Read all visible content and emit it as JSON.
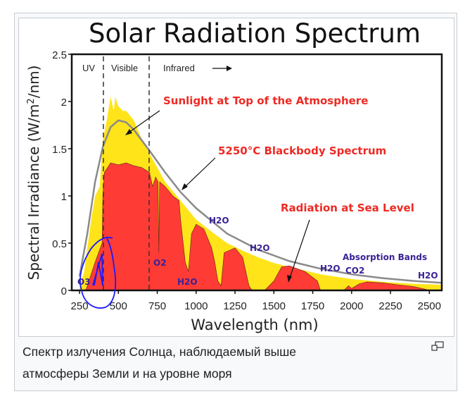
{
  "caption": {
    "line1": "Спектр излучения Солнца, наблюдаемый выше",
    "line2": "атмосферы Земли и на уровне моря"
  },
  "enlarge_icon": "magnify-clip-icon",
  "chart_data": {
    "type": "area",
    "title": "Solar Radiation Spectrum",
    "xlabel": "Wavelength (nm)",
    "ylabel": "Spectral Irradiance (W/m²/nm)",
    "ylabel_parts": {
      "main": "Spectral Irradiance (W/m",
      "sup": "2",
      "end": "/nm)"
    },
    "xlim": [
      200,
      2580
    ],
    "ylim": [
      0,
      2.5
    ],
    "xticks": [
      "250",
      "500",
      "750",
      "1000",
      "1250",
      "1500",
      "1750",
      "2000",
      "2250",
      "2500"
    ],
    "xtick_values": [
      250,
      500,
      750,
      1000,
      1250,
      1500,
      1750,
      2000,
      2250,
      2500
    ],
    "yticks": [
      "0",
      "0.5",
      "1",
      "1.5",
      "2",
      "2.5"
    ],
    "ytick_values": [
      0,
      0.5,
      1,
      1.5,
      2,
      2.5
    ],
    "regions": {
      "uv": "UV",
      "visible": "Visible",
      "infrared": "Infrared",
      "boundaries": [
        400,
        700
      ]
    },
    "series": [
      {
        "name": "Sunlight at Top of the Atmosphere",
        "color": "#ffe41a",
        "x": [
          250,
          280,
          300,
          330,
          350,
          380,
          400,
          420,
          440,
          450,
          470,
          480,
          500,
          530,
          550,
          600,
          650,
          700,
          750,
          800,
          900,
          1000,
          1100,
          1200,
          1300,
          1400,
          1500,
          1600,
          1700,
          1800,
          2000,
          2200,
          2400,
          2580
        ],
        "y": [
          0.05,
          0.2,
          0.45,
          0.8,
          1.0,
          1.1,
          1.6,
          1.75,
          1.95,
          2.05,
          1.9,
          2.05,
          1.95,
          1.9,
          1.9,
          1.8,
          1.6,
          1.45,
          1.3,
          1.15,
          0.95,
          0.75,
          0.62,
          0.5,
          0.42,
          0.35,
          0.29,
          0.25,
          0.21,
          0.17,
          0.12,
          0.09,
          0.07,
          0.06
        ]
      },
      {
        "name": "Radiation at Sea Level",
        "color": "#ff3b36",
        "x": [
          290,
          300,
          350,
          395,
          400,
          410,
          450,
          500,
          550,
          600,
          650,
          700,
          720,
          740,
          755,
          760,
          765,
          800,
          850,
          890,
          900,
          930,
          950,
          970,
          1000,
          1050,
          1100,
          1120,
          1140,
          1160,
          1180,
          1250,
          1300,
          1340,
          1360,
          1440,
          1500,
          1550,
          1600,
          1700,
          1780,
          1800,
          1950,
          1980,
          2000,
          2050,
          2100,
          2200,
          2300,
          2400,
          2480,
          2500
        ],
        "y": [
          0,
          0.05,
          0.3,
          0.5,
          1.0,
          1.25,
          1.35,
          1.33,
          1.35,
          1.32,
          1.3,
          1.25,
          1.1,
          1.2,
          1.15,
          0.4,
          1.15,
          1.1,
          1.0,
          0.95,
          0.75,
          0.3,
          0.2,
          0.6,
          0.7,
          0.65,
          0.45,
          0.3,
          0.1,
          0.05,
          0.4,
          0.45,
          0.35,
          0.05,
          0,
          0,
          0.1,
          0.25,
          0.26,
          0.2,
          0.1,
          0,
          0,
          0.05,
          0.02,
          0.07,
          0.09,
          0.08,
          0.06,
          0.04,
          0.01,
          0
        ]
      },
      {
        "name": "5250°C Blackbody Spectrum",
        "color": "#8a8a8a",
        "x": [
          250,
          300,
          350,
          400,
          450,
          500,
          550,
          600,
          700,
          800,
          900,
          1000,
          1200,
          1400,
          1600,
          1800,
          2000,
          2200,
          2400,
          2580
        ],
        "y": [
          0.15,
          0.6,
          1.15,
          1.52,
          1.73,
          1.8,
          1.78,
          1.7,
          1.48,
          1.25,
          1.04,
          0.87,
          0.6,
          0.43,
          0.31,
          0.23,
          0.17,
          0.13,
          0.1,
          0.08
        ]
      }
    ],
    "annotations": {
      "toa": "Sunlight at Top of the Atmosphere",
      "blackbody": "5250°C Blackbody Spectrum",
      "sea": "Radiation at Sea Level",
      "bands": "Absorption Bands",
      "o3": "O3",
      "o2": "O2",
      "h2o": "H2O",
      "co2": "CO2"
    }
  }
}
